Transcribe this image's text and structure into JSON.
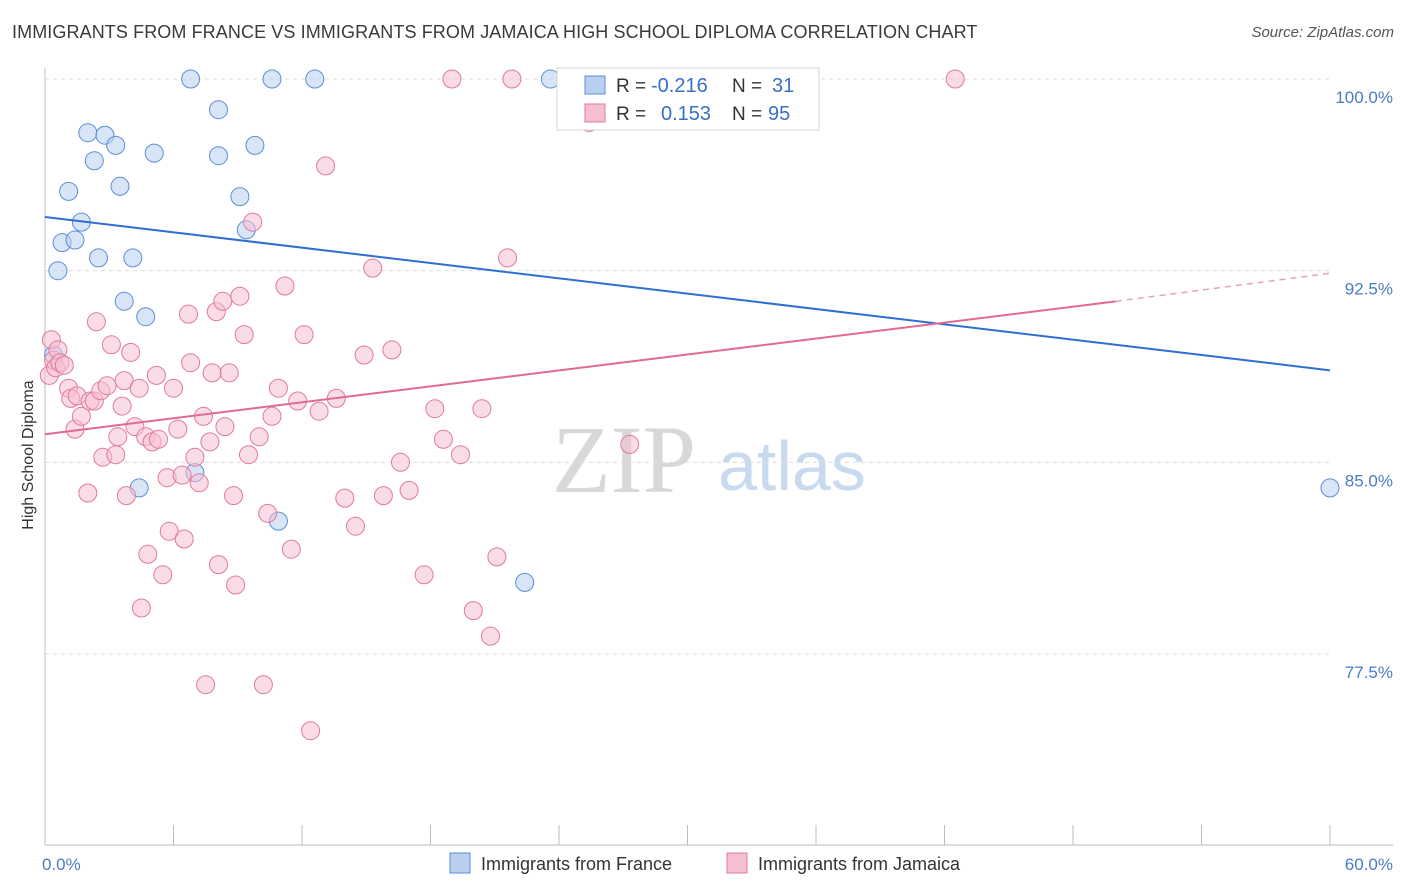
{
  "header": {
    "title": "IMMIGRANTS FROM FRANCE VS IMMIGRANTS FROM JAMAICA HIGH SCHOOL DIPLOMA CORRELATION CHART",
    "source": "Source: ZipAtlas.com"
  },
  "watermark": {
    "zip": "ZIP",
    "atlas": "atlas"
  },
  "stats": {
    "france": {
      "r_label": "R =",
      "r_value": "-0.216",
      "n_label": "N =",
      "n_value": "31"
    },
    "jamaica": {
      "r_label": "R =",
      "r_value": "0.153",
      "n_label": "N =",
      "n_value": "95"
    }
  },
  "chart_data": {
    "type": "scatter",
    "ylabel": "High School Diploma",
    "xlim": [
      0,
      60
    ],
    "ylim": [
      71.0,
      101.0
    ],
    "x_tick_labels": [
      {
        "value": 0,
        "label": "0.0%"
      },
      {
        "value": 60,
        "label": "60.0%"
      }
    ],
    "y_ticks": [
      {
        "value": 100.0,
        "label": "100.0%"
      },
      {
        "value": 92.5,
        "label": "92.5%"
      },
      {
        "value": 85.0,
        "label": "85.0%"
      },
      {
        "value": 77.5,
        "label": "77.5%"
      }
    ],
    "grid": true,
    "legend_position": "bottom-center",
    "series": [
      {
        "name": "Immigrants from France",
        "color": "#5b8fd8",
        "fill": "#b8cff0",
        "trend": {
          "x0": 0,
          "y0": 94.6,
          "x1": 60,
          "y1": 88.6
        },
        "points": [
          [
            0.4,
            89.2
          ],
          [
            0.6,
            92.5
          ],
          [
            0.8,
            93.6
          ],
          [
            1.1,
            95.6
          ],
          [
            1.4,
            93.7
          ],
          [
            1.7,
            94.4
          ],
          [
            2.0,
            97.9
          ],
          [
            2.3,
            96.8
          ],
          [
            2.5,
            93.0
          ],
          [
            2.8,
            97.8
          ],
          [
            3.3,
            97.4
          ],
          [
            3.5,
            95.8
          ],
          [
            3.7,
            91.3
          ],
          [
            4.1,
            93.0
          ],
          [
            4.4,
            84.0
          ],
          [
            4.7,
            90.7
          ],
          [
            5.1,
            97.1
          ],
          [
            6.8,
            100.0
          ],
          [
            7.0,
            84.6
          ],
          [
            8.1,
            98.8
          ],
          [
            8.1,
            97.0
          ],
          [
            9.1,
            95.4
          ],
          [
            9.4,
            94.1
          ],
          [
            9.8,
            97.4
          ],
          [
            10.6,
            100.0
          ],
          [
            10.9,
            82.7
          ],
          [
            12.6,
            100.0
          ],
          [
            22.4,
            80.3
          ],
          [
            23.6,
            100.0
          ],
          [
            31.9,
            100.0
          ],
          [
            60.0,
            84.0
          ]
        ]
      },
      {
        "name": "Immigrants from Jamaica",
        "color": "#e07a9f",
        "fill": "#f5bfd1",
        "trend": {
          "x0": 0,
          "y0": 86.1,
          "x1": 50.0,
          "y1": 91.3,
          "dash_x1": 60,
          "dash_y1": 92.4
        },
        "points": [
          [
            0.2,
            88.4
          ],
          [
            0.3,
            89.8
          ],
          [
            0.4,
            89.0
          ],
          [
            0.5,
            88.7
          ],
          [
            0.6,
            89.4
          ],
          [
            0.7,
            88.9
          ],
          [
            0.9,
            88.8
          ],
          [
            1.1,
            87.9
          ],
          [
            1.2,
            87.5
          ],
          [
            1.4,
            86.3
          ],
          [
            1.5,
            87.6
          ],
          [
            1.7,
            86.8
          ],
          [
            2.0,
            83.8
          ],
          [
            2.1,
            87.4
          ],
          [
            2.3,
            87.4
          ],
          [
            2.4,
            90.5
          ],
          [
            2.6,
            87.8
          ],
          [
            2.7,
            85.2
          ],
          [
            2.9,
            88.0
          ],
          [
            3.1,
            89.6
          ],
          [
            3.3,
            85.3
          ],
          [
            3.4,
            86.0
          ],
          [
            3.6,
            87.2
          ],
          [
            3.7,
            88.2
          ],
          [
            3.8,
            83.7
          ],
          [
            4.0,
            89.3
          ],
          [
            4.2,
            86.4
          ],
          [
            4.4,
            87.9
          ],
          [
            4.5,
            79.3
          ],
          [
            4.7,
            86.0
          ],
          [
            4.8,
            81.4
          ],
          [
            5.0,
            85.8
          ],
          [
            5.2,
            88.4
          ],
          [
            5.3,
            85.9
          ],
          [
            5.5,
            80.6
          ],
          [
            5.7,
            84.4
          ],
          [
            5.8,
            82.3
          ],
          [
            6.0,
            87.9
          ],
          [
            6.2,
            86.3
          ],
          [
            6.4,
            84.5
          ],
          [
            6.5,
            82.0
          ],
          [
            6.7,
            90.8
          ],
          [
            6.8,
            88.9
          ],
          [
            7.0,
            85.2
          ],
          [
            7.2,
            84.2
          ],
          [
            7.4,
            86.8
          ],
          [
            7.5,
            76.3
          ],
          [
            7.7,
            85.8
          ],
          [
            7.8,
            88.5
          ],
          [
            8.0,
            90.9
          ],
          [
            8.1,
            81.0
          ],
          [
            8.3,
            91.3
          ],
          [
            8.4,
            86.4
          ],
          [
            8.6,
            88.5
          ],
          [
            8.8,
            83.7
          ],
          [
            8.9,
            80.2
          ],
          [
            9.1,
            91.5
          ],
          [
            9.3,
            90.0
          ],
          [
            9.5,
            85.3
          ],
          [
            9.7,
            94.4
          ],
          [
            10.0,
            86.0
          ],
          [
            10.2,
            76.3
          ],
          [
            10.4,
            83.0
          ],
          [
            10.6,
            86.8
          ],
          [
            10.9,
            87.9
          ],
          [
            11.2,
            91.9
          ],
          [
            11.5,
            81.6
          ],
          [
            11.8,
            87.4
          ],
          [
            12.1,
            90.0
          ],
          [
            12.4,
            74.5
          ],
          [
            12.8,
            87.0
          ],
          [
            13.1,
            96.6
          ],
          [
            13.6,
            87.5
          ],
          [
            14.0,
            83.6
          ],
          [
            14.5,
            82.5
          ],
          [
            14.9,
            89.2
          ],
          [
            15.3,
            92.6
          ],
          [
            15.8,
            83.7
          ],
          [
            16.2,
            89.4
          ],
          [
            16.6,
            85.0
          ],
          [
            17.0,
            83.9
          ],
          [
            17.7,
            80.6
          ],
          [
            18.2,
            87.1
          ],
          [
            18.6,
            85.9
          ],
          [
            19.0,
            100.0
          ],
          [
            19.4,
            85.3
          ],
          [
            20.0,
            79.2
          ],
          [
            20.4,
            87.1
          ],
          [
            20.8,
            78.2
          ],
          [
            21.1,
            81.3
          ],
          [
            21.6,
            93.0
          ],
          [
            21.8,
            100.0
          ],
          [
            25.4,
            98.3
          ],
          [
            27.3,
            85.7
          ],
          [
            42.5,
            100.0
          ]
        ]
      }
    ]
  }
}
